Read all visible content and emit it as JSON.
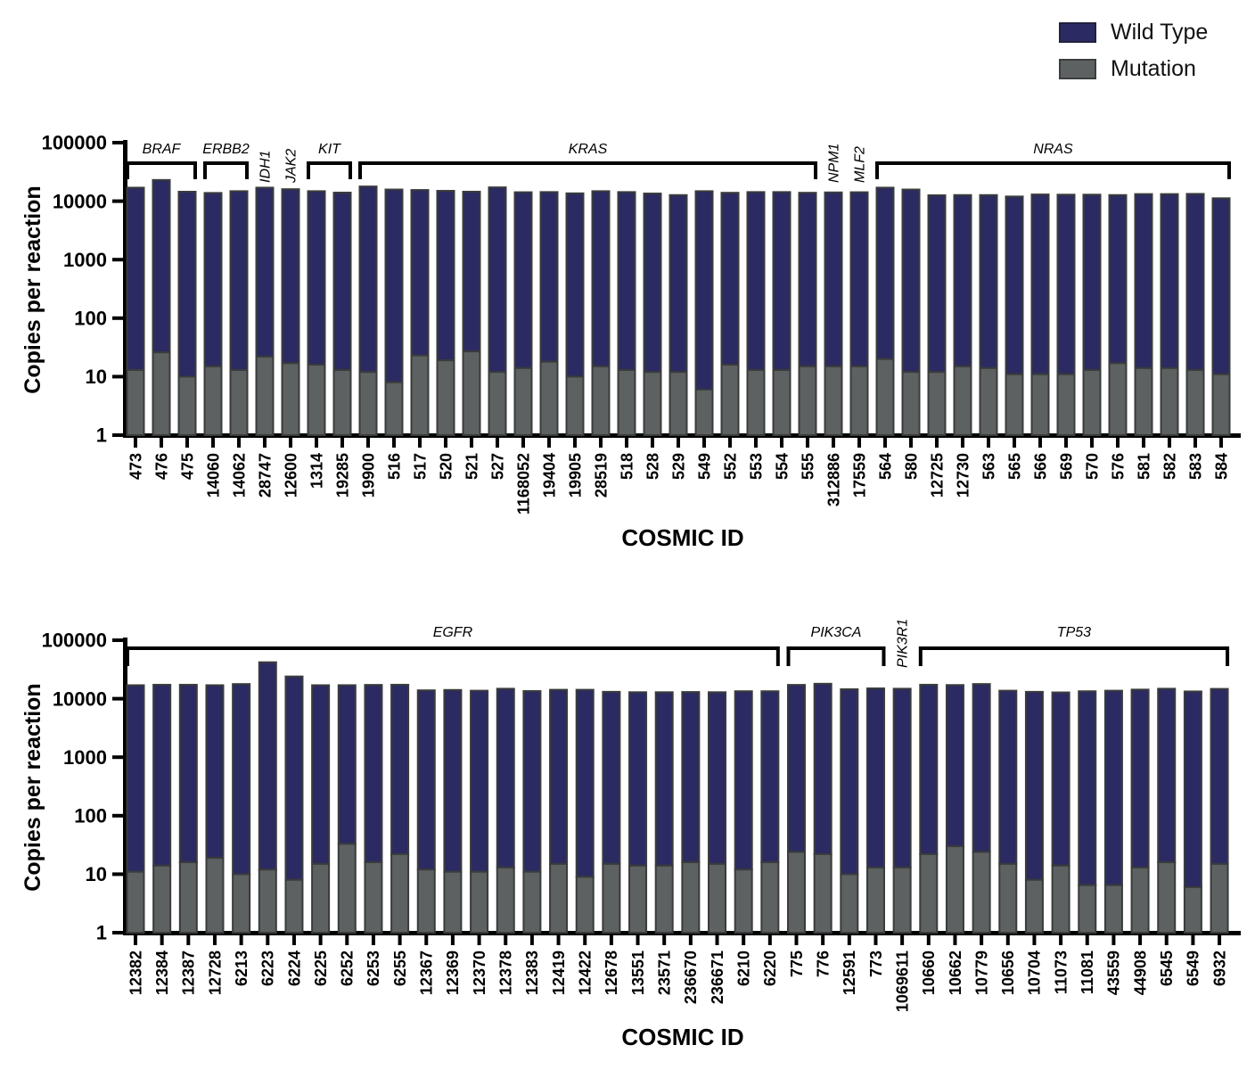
{
  "legend": {
    "items": [
      {
        "label": "Wild Type",
        "color": "#2b2a62"
      },
      {
        "label": "Mutation",
        "color": "#5d6161"
      }
    ]
  },
  "colors": {
    "wild_type": "#2b2a62",
    "mutation": "#5d6161",
    "bar_outline": "#3a3c3c",
    "axis": "#000000"
  },
  "chart_data": [
    {
      "type": "bar",
      "stacked": true,
      "log_scale": true,
      "xlabel": "COSMIC ID",
      "ylabel": "Copies per reaction",
      "ylim": [
        1,
        100000
      ],
      "yticks": [
        "1",
        "10",
        "100",
        "1000",
        "10000",
        "100000"
      ],
      "legend_position": "top-right",
      "grid": false,
      "categories": [
        "473",
        "476",
        "475",
        "14060",
        "14062",
        "28747",
        "12600",
        "1314",
        "19285",
        "19900",
        "516",
        "517",
        "520",
        "521",
        "527",
        "1168052",
        "19404",
        "19905",
        "28519",
        "518",
        "528",
        "529",
        "549",
        "552",
        "553",
        "554",
        "555",
        "312886",
        "17559",
        "564",
        "580",
        "12725",
        "12730",
        "563",
        "565",
        "566",
        "569",
        "570",
        "576",
        "581",
        "582",
        "583",
        "584"
      ],
      "series": [
        {
          "name": "Mutation",
          "values": [
            13,
            26,
            10,
            15,
            13,
            22,
            17,
            16,
            13,
            12,
            8,
            23,
            19,
            27,
            12,
            14,
            18,
            10,
            15,
            13,
            12,
            12,
            6,
            16,
            13,
            13,
            15,
            15,
            15,
            20,
            12,
            12,
            15,
            14,
            11,
            11,
            11,
            13,
            17,
            14,
            14,
            13,
            11
          ]
        },
        {
          "name": "Wild Type",
          "values": [
            17000,
            23000,
            14500,
            13800,
            14800,
            17000,
            16000,
            14800,
            14000,
            17800,
            15800,
            15500,
            15000,
            14500,
            17200,
            14200,
            14300,
            13600,
            14800,
            14300,
            13500,
            12700,
            14800,
            13900,
            14300,
            14300,
            13900,
            14100,
            14200,
            17000,
            15800,
            12600,
            12700,
            12700,
            12000,
            13000,
            12900,
            12900,
            12700,
            13200,
            13200,
            13300,
            11200
          ]
        }
      ],
      "gene_groups": [
        {
          "label": "BRAF",
          "start": 0,
          "end": 2,
          "bracket": true
        },
        {
          "label": "ERBB2",
          "start": 3,
          "end": 4,
          "bracket": true
        },
        {
          "label": "IDH1",
          "start": 5,
          "end": 5,
          "bracket": false
        },
        {
          "label": "JAK2",
          "start": 6,
          "end": 6,
          "bracket": false
        },
        {
          "label": "KIT",
          "start": 7,
          "end": 8,
          "bracket": true
        },
        {
          "label": "KRAS",
          "start": 9,
          "end": 26,
          "bracket": true
        },
        {
          "label": "NPM1",
          "start": 27,
          "end": 27,
          "bracket": false
        },
        {
          "label": "MLF2",
          "start": 28,
          "end": 28,
          "bracket": false
        },
        {
          "label": "NRAS",
          "start": 29,
          "end": 42,
          "bracket": true
        }
      ]
    },
    {
      "type": "bar",
      "stacked": true,
      "log_scale": true,
      "xlabel": "COSMIC ID",
      "ylabel": "Copies per reaction",
      "ylim": [
        1,
        100000
      ],
      "yticks": [
        "1",
        "10",
        "100",
        "1000",
        "10000",
        "100000"
      ],
      "grid": false,
      "categories": [
        "12382",
        "12384",
        "12387",
        "12728",
        "6213",
        "6223",
        "6224",
        "6225",
        "6252",
        "6253",
        "6255",
        "12367",
        "12369",
        "12370",
        "12378",
        "12383",
        "12419",
        "12422",
        "12678",
        "13551",
        "23571",
        "236670",
        "236671",
        "6210",
        "6220",
        "775",
        "776",
        "12591",
        "773",
        "1069611",
        "10660",
        "10662",
        "10779",
        "10656",
        "10704",
        "11073",
        "11081",
        "43559",
        "44908",
        "6545",
        "6549",
        "6932"
      ],
      "series": [
        {
          "name": "Mutation",
          "values": [
            11,
            14,
            16,
            19,
            10,
            12,
            8,
            15,
            33,
            16,
            22,
            12,
            11,
            11,
            13,
            11,
            15,
            9,
            15,
            14,
            14,
            16,
            15,
            12,
            16,
            24,
            22,
            10,
            13,
            13,
            22,
            30,
            24,
            15,
            8,
            14,
            6.5,
            6.5,
            13,
            16,
            6,
            15
          ]
        },
        {
          "name": "Wild Type",
          "values": [
            17000,
            17300,
            17300,
            17000,
            17800,
            42000,
            24000,
            17000,
            17000,
            17200,
            17300,
            13900,
            14100,
            13700,
            14800,
            13500,
            14200,
            14200,
            13100,
            12900,
            12900,
            13000,
            12900,
            13400,
            13400,
            17200,
            18000,
            14500,
            15000,
            14800,
            17300,
            17100,
            17800,
            13700,
            13100,
            12800,
            13400,
            13700,
            14300,
            14800,
            13300,
            14700
          ]
        }
      ],
      "gene_groups": [
        {
          "label": "EGFR",
          "start": 0,
          "end": 24,
          "bracket": true
        },
        {
          "label": "PIK3CA",
          "start": 25,
          "end": 28,
          "bracket": true
        },
        {
          "label": "PIK3R1",
          "start": 29,
          "end": 29,
          "bracket": false
        },
        {
          "label": "TP53",
          "start": 30,
          "end": 41,
          "bracket": true
        }
      ]
    }
  ]
}
